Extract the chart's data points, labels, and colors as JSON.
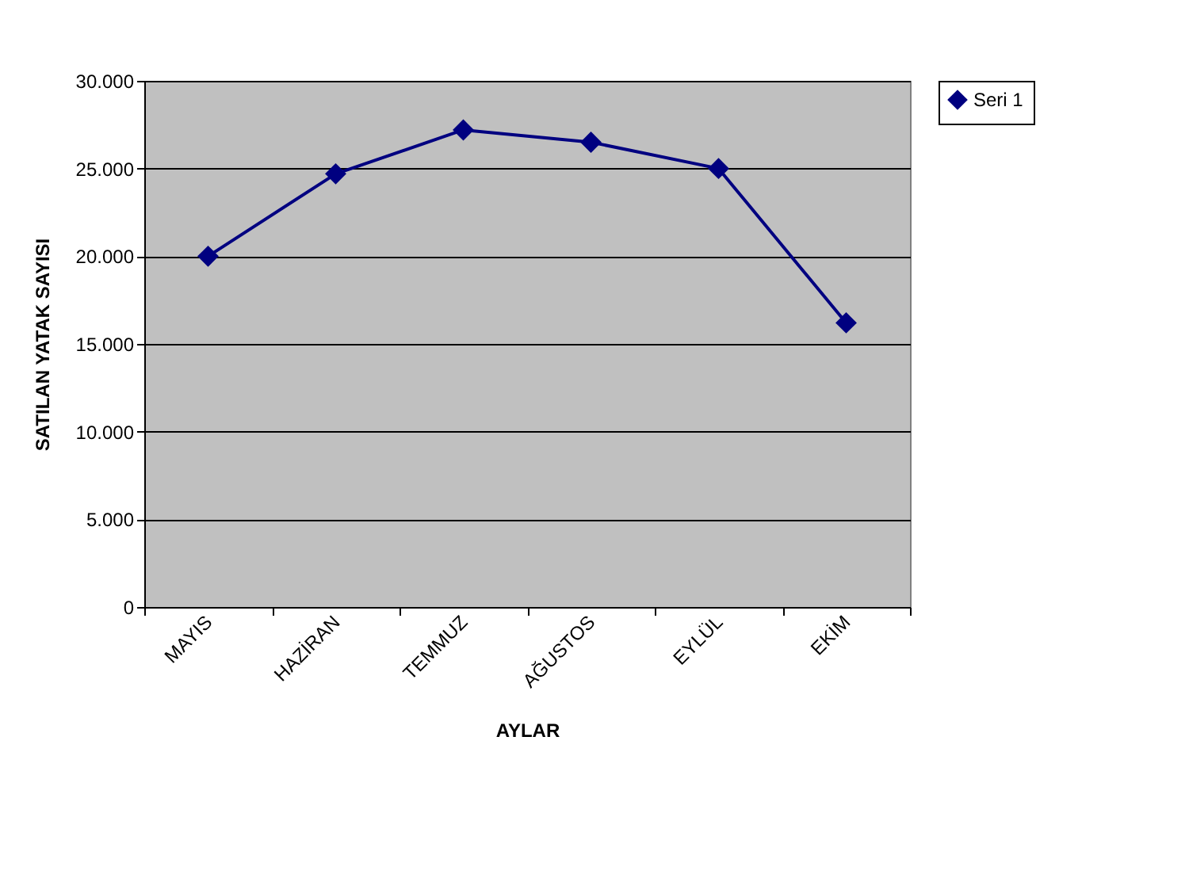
{
  "chart_data": {
    "type": "line",
    "xlabel": "AYLAR",
    "ylabel": "SATILAN YATAK SAYISI",
    "categories": [
      "MAYIS",
      "HAZİRAN",
      "TEMMUZ",
      "AĞUSTOS",
      "EYLÜL",
      "EKİM"
    ],
    "series": [
      {
        "name": "Seri 1",
        "color": "#000080",
        "values": [
          20000,
          24700,
          27200,
          26500,
          25000,
          16200
        ]
      }
    ],
    "ylim": [
      0,
      30000
    ],
    "yticks": [
      {
        "value": 0,
        "label": "0"
      },
      {
        "value": 5000,
        "label": "5.000"
      },
      {
        "value": 10000,
        "label": "10.000"
      },
      {
        "value": 15000,
        "label": "15.000"
      },
      {
        "value": 20000,
        "label": "20.000"
      },
      {
        "value": 25000,
        "label": "25.000"
      },
      {
        "value": 30000,
        "label": "30.000"
      }
    ],
    "grid": "y",
    "legend": "right",
    "marker": "diamond",
    "line_style": "solid"
  }
}
